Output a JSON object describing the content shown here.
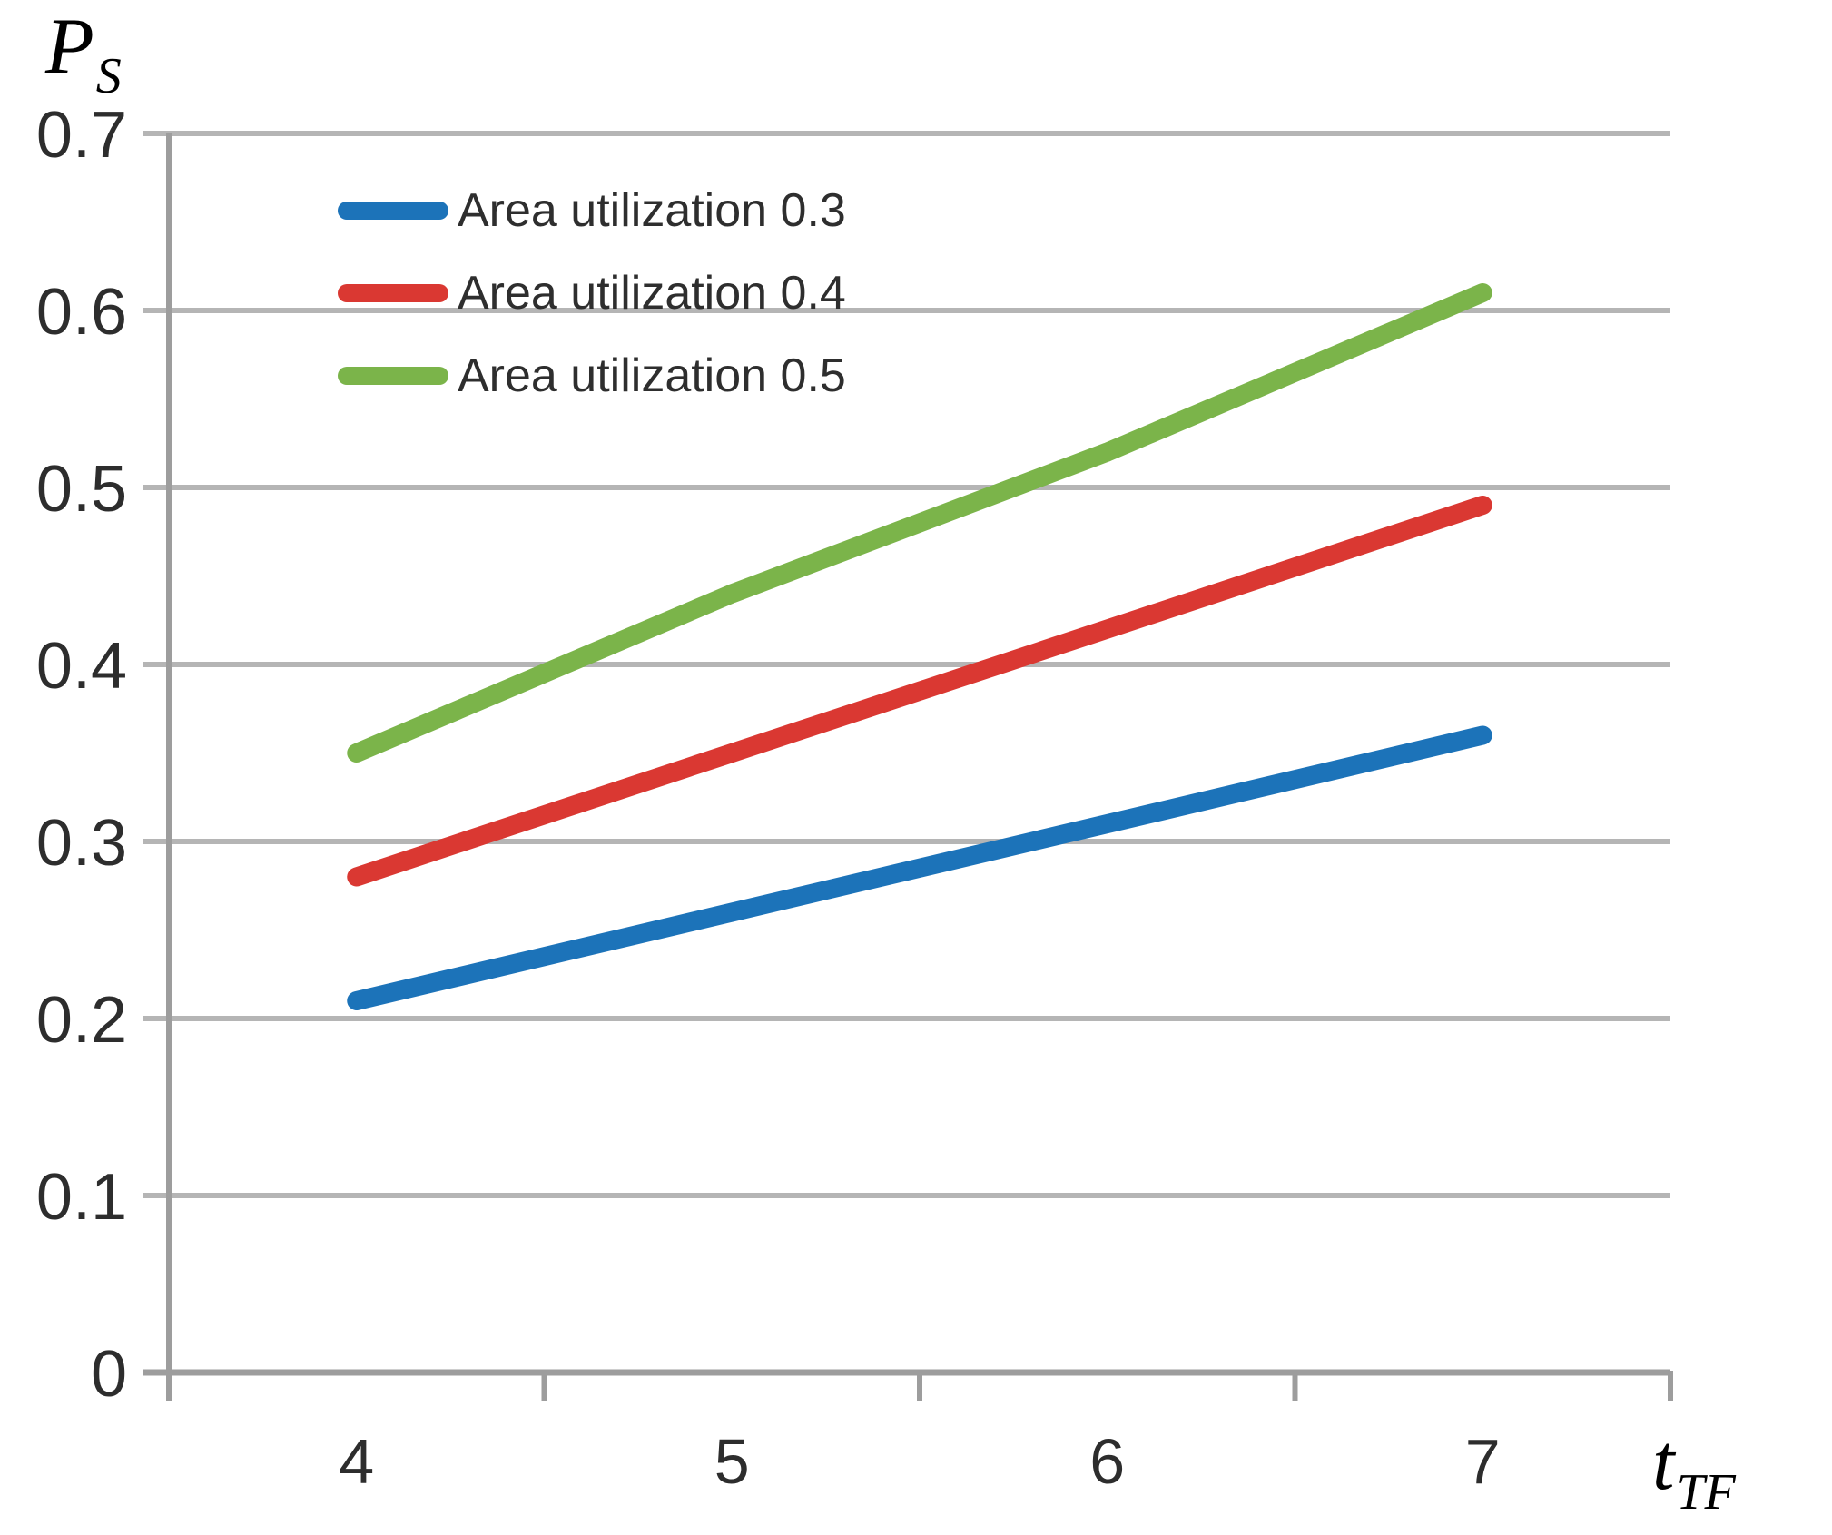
{
  "chart_data": {
    "type": "line",
    "title": "",
    "xlabel": "t_TF",
    "xlabel_main": "t",
    "xlabel_sub": "TF",
    "ylabel": "P_S",
    "ylabel_main": "P",
    "ylabel_sub": "S",
    "x": [
      4,
      5,
      6,
      7
    ],
    "xticks": [
      "4",
      "5",
      "6",
      "7"
    ],
    "yticks": [
      "0",
      "0.1",
      "0.2",
      "0.3",
      "0.4",
      "0.5",
      "0.6",
      "0.7"
    ],
    "ylim": [
      0,
      0.7
    ],
    "grid": true,
    "legend_position": "top-left-inside",
    "series": [
      {
        "name": "Area utilization 0.3",
        "color": "#1c73b9",
        "values": [
          0.21,
          0.26,
          0.31,
          0.36
        ]
      },
      {
        "name": "Area utilization 0.4",
        "color": "#da3832",
        "values": [
          0.28,
          0.35,
          0.42,
          0.49
        ]
      },
      {
        "name": "Area utilization 0.5",
        "color": "#7bb44a",
        "values": [
          0.35,
          0.44,
          0.52,
          0.61
        ]
      }
    ],
    "colors": {
      "gridline": "#b5b5b5",
      "axis": "#9d9d9d",
      "tick_text": "#2d2d2d",
      "legend_text": "#2e2e2e",
      "background": "#ffffff"
    }
  }
}
